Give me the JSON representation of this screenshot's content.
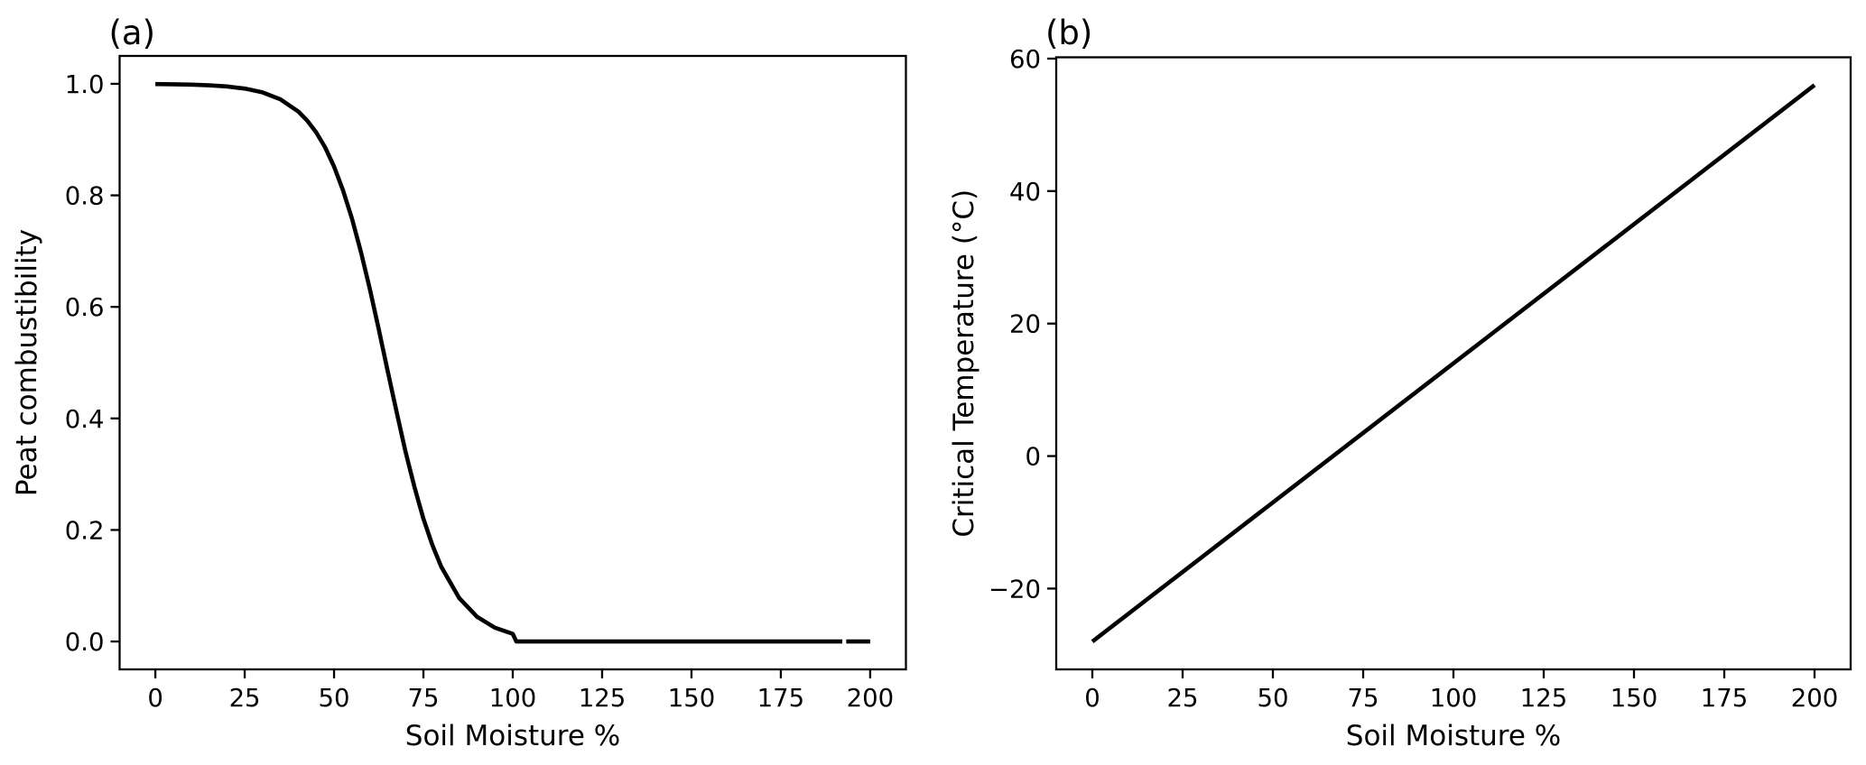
{
  "figure": {
    "background": "#ffffff",
    "axis_color": "#000000",
    "line_color": "#000000"
  },
  "chart_data": [
    {
      "type": "line",
      "panel": "a",
      "title": "(a)",
      "xlabel": "Soil Moisture %",
      "ylabel": "Peat combustibility",
      "xlim": [
        -10,
        210
      ],
      "ylim": [
        -0.05,
        1.05
      ],
      "xticks": [
        0,
        25,
        50,
        75,
        100,
        125,
        150,
        175,
        200
      ],
      "xtick_labels": [
        "0",
        "25",
        "50",
        "75",
        "100",
        "125",
        "150",
        "175",
        "200"
      ],
      "yticks": [
        0.0,
        0.2,
        0.4,
        0.6,
        0.8,
        1.0
      ],
      "ytick_labels": [
        "0.0",
        "0.2",
        "0.4",
        "0.6",
        "0.8",
        "1.0"
      ],
      "grid": false,
      "legend": null,
      "points": [
        [
          0,
          0.9996
        ],
        [
          5,
          0.9992
        ],
        [
          10,
          0.9986
        ],
        [
          15,
          0.9974
        ],
        [
          20,
          0.9953
        ],
        [
          25,
          0.9915
        ],
        [
          30,
          0.9846
        ],
        [
          35,
          0.9722
        ],
        [
          40,
          0.9503
        ],
        [
          42.5,
          0.934
        ],
        [
          45,
          0.9129
        ],
        [
          47.5,
          0.886
        ],
        [
          50,
          0.8516
        ],
        [
          52.5,
          0.809
        ],
        [
          55,
          0.7585
        ],
        [
          57.5,
          0.699
        ],
        [
          60,
          0.6323
        ],
        [
          62.5,
          0.56
        ],
        [
          65,
          0.485
        ],
        [
          67.5,
          0.4116
        ],
        [
          70,
          0.3401
        ],
        [
          72.5,
          0.2768
        ],
        [
          75,
          0.2201
        ],
        [
          77.5,
          0.173
        ],
        [
          80,
          0.1339
        ],
        [
          85,
          0.078
        ],
        [
          90,
          0.0443
        ],
        [
          95,
          0.0247
        ],
        [
          100,
          0.0137
        ],
        [
          101,
          0.0
        ],
        [
          110,
          0.0
        ],
        [
          150,
          0.0
        ],
        [
          192.2,
          0.0
        ],
        null,
        [
          193.3,
          0.0
        ],
        [
          200,
          0.0
        ]
      ]
    },
    {
      "type": "line",
      "panel": "b",
      "title": "(b)",
      "xlabel": "Soil Moisture %",
      "ylabel": "Critical Temperature (°C)",
      "xlim": [
        -10,
        210
      ],
      "ylim": [
        -32.2,
        60.2
      ],
      "xticks": [
        0,
        25,
        50,
        75,
        100,
        125,
        150,
        175,
        200
      ],
      "xtick_labels": [
        "0",
        "25",
        "50",
        "75",
        "100",
        "125",
        "150",
        "175",
        "200"
      ],
      "yticks": [
        -20,
        0,
        20,
        40,
        60
      ],
      "ytick_labels": [
        "−20",
        "0",
        "20",
        "40",
        "60"
      ],
      "grid": false,
      "legend": null,
      "points": [
        [
          0,
          -28
        ],
        [
          200,
          56
        ]
      ]
    }
  ]
}
